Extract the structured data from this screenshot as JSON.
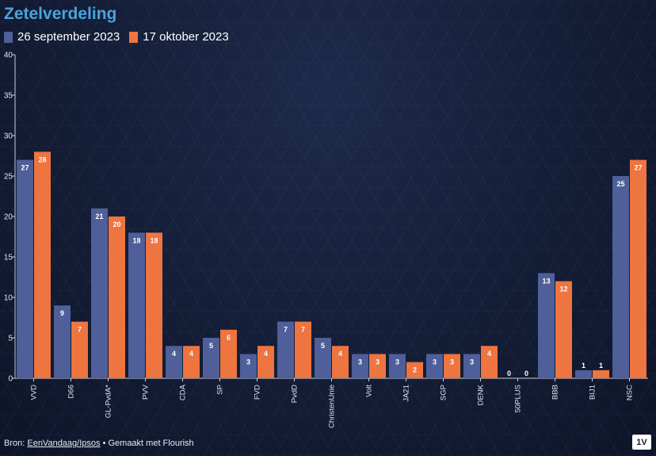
{
  "title": "Zetelverdeling",
  "legend": [
    {
      "name": "26 september 2023",
      "color": "#4e5f99"
    },
    {
      "name": "17 oktober 2023",
      "color": "#ee7440"
    }
  ],
  "footer": {
    "prefix": "Bron: ",
    "source": "EenVandaag/Ipsos",
    "suffix": " • Gemaakt met Flourish"
  },
  "logo_text": "1V",
  "chart_data": {
    "type": "bar",
    "title": "Zetelverdeling",
    "categories": [
      "VVD",
      "D66",
      "GL-PvdA*",
      "PVV",
      "CDA",
      "SP",
      "FVD",
      "PvdD",
      "ChristenUnie",
      "Volt",
      "JA21",
      "SGP",
      "DENK",
      "50PLUS",
      "BBB",
      "BIJ1",
      "NSC"
    ],
    "series": [
      {
        "name": "26 september 2023",
        "color": "#4e5f99",
        "values": [
          27,
          9,
          21,
          18,
          4,
          5,
          3,
          7,
          5,
          3,
          3,
          3,
          3,
          0,
          13,
          1,
          25
        ]
      },
      {
        "name": "17 oktober 2023",
        "color": "#ee7440",
        "values": [
          28,
          7,
          20,
          18,
          4,
          6,
          4,
          7,
          4,
          3,
          2,
          3,
          4,
          0,
          12,
          1,
          27
        ]
      }
    ],
    "ylim": [
      0,
      40
    ],
    "yticks": [
      0,
      5,
      10,
      15,
      20,
      25,
      30,
      35,
      40
    ],
    "grid": false,
    "legend_position": "top-left"
  }
}
